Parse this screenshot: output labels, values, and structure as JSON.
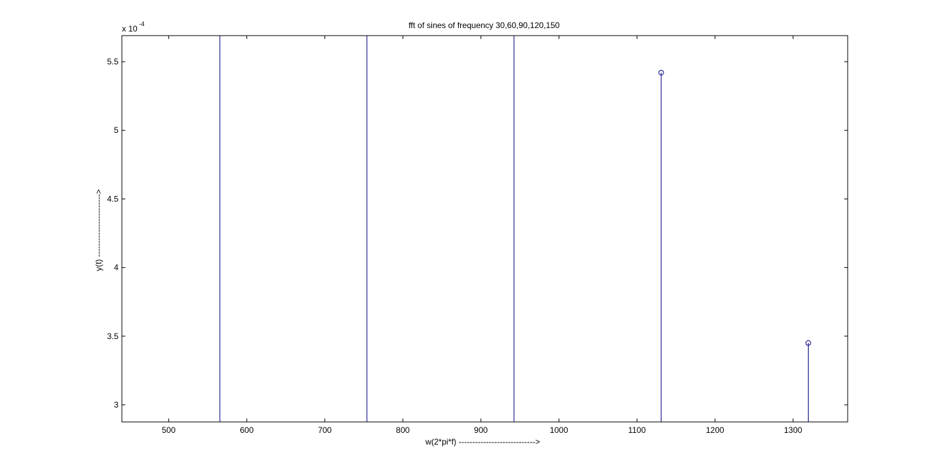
{
  "chart_data": {
    "type": "stem",
    "title": "fft of sines of frequency 30,60,90,120,150",
    "xlabel": "w(2*pi*f) ---------------------------->",
    "ylabel": "y(t)  ----------------------->",
    "y_exponent_base": "x 10",
    "y_exponent_power": "-4",
    "xlim": [
      440,
      1370
    ],
    "ylim": [
      2.875,
      5.69
    ],
    "xticks": [
      500,
      600,
      700,
      800,
      900,
      1000,
      1100,
      1200,
      1300
    ],
    "xtick_labels": [
      "500",
      "600",
      "700",
      "800",
      "900",
      "1000",
      "1100",
      "1200",
      "1300"
    ],
    "yticks": [
      3,
      3.5,
      4,
      4.5,
      5,
      5.5
    ],
    "ytick_labels": [
      "3",
      "3.5",
      "4",
      "4.5",
      "5",
      "5.5"
    ],
    "grid": false,
    "color": "#000080",
    "series": [
      {
        "x": [
          565.5,
          754.0,
          942.5,
          1131.0,
          1319.5
        ],
        "y": [
          null,
          null,
          null,
          5.42,
          3.45
        ],
        "note_off_scale": [
          true,
          true,
          true,
          false,
          false
        ]
      }
    ]
  }
}
